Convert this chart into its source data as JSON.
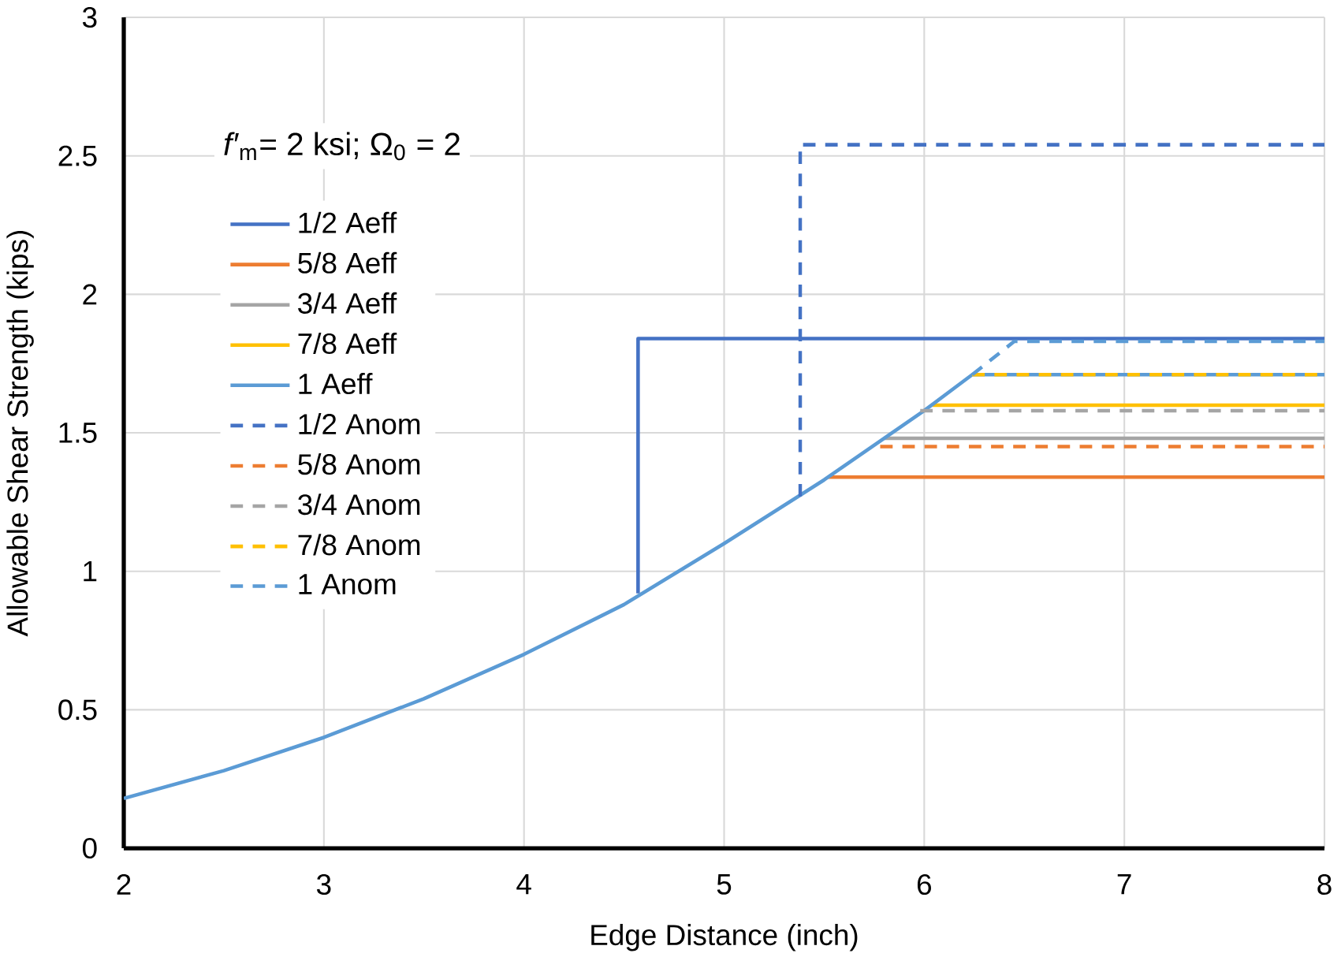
{
  "chart_data": {
    "type": "line",
    "xlabel": "Edge Distance (inch)",
    "ylabel": "Allowable Shear Strength (kips)",
    "annotations": [
      "*f′*$_{m}$= 2 ksi; Ω$_{0}$ = 2"
    ],
    "xlim": [
      2,
      8
    ],
    "ylim": [
      0,
      3
    ],
    "xticks": [
      2,
      3,
      4,
      5,
      6,
      7,
      8
    ],
    "yticks": [
      0,
      0.5,
      1,
      1.5,
      2,
      2.5,
      3
    ],
    "grid": true,
    "legend": "top left",
    "marker": "none",
    "series": [
      {
        "name": "1/2 Aeff",
        "color": "#4472c4",
        "line_style": "solid",
        "x": [
          4.57,
          4.57,
          8
        ],
        "values": [
          0.92,
          1.84,
          1.84
        ]
      },
      {
        "name": "5/8 Aeff",
        "color": "#ed7d31",
        "line_style": "solid",
        "x": [
          5.52,
          8
        ],
        "values": [
          1.34,
          1.34
        ]
      },
      {
        "name": "3/4 Aeff",
        "color": "#a5a5a5",
        "line_style": "solid",
        "x": [
          5.8,
          8
        ],
        "values": [
          1.48,
          1.48
        ]
      },
      {
        "name": "7/8 Aeff",
        "color": "#ffc000",
        "line_style": "solid",
        "x": [
          6.04,
          8
        ],
        "values": [
          1.6,
          1.6
        ]
      },
      {
        "name": "1 Aeff",
        "color": "#5b9bd5",
        "line_style": "solid",
        "x": [
          2,
          2.5,
          3,
          3.5,
          4,
          4.5,
          5,
          5.5,
          6,
          6.24,
          8
        ],
        "values": [
          0.18,
          0.28,
          0.4,
          0.54,
          0.7,
          0.88,
          1.1,
          1.33,
          1.58,
          1.71,
          1.71
        ]
      },
      {
        "name": "1/2 Anom",
        "color": "#4472c4",
        "line_style": "dashed",
        "x": [
          5.38,
          5.38,
          8
        ],
        "values": [
          1.27,
          2.54,
          2.54
        ]
      },
      {
        "name": "5/8 Anom",
        "color": "#ed7d31",
        "line_style": "dashed",
        "x": [
          5.78,
          8
        ],
        "values": [
          1.45,
          1.45
        ]
      },
      {
        "name": "3/4 Anom",
        "color": "#a5a5a5",
        "line_style": "dashed",
        "x": [
          5.98,
          8
        ],
        "values": [
          1.58,
          1.58
        ]
      },
      {
        "name": "7/8 Anom",
        "color": "#ffc000",
        "line_style": "dashed",
        "x": [
          6.24,
          8
        ],
        "values": [
          1.71,
          1.71
        ]
      },
      {
        "name": "1 Anom",
        "color": "#5b9bd5",
        "line_style": "dashed",
        "x": [
          6.24,
          6.45,
          8
        ],
        "values": [
          1.71,
          1.83,
          1.83
        ]
      }
    ]
  }
}
